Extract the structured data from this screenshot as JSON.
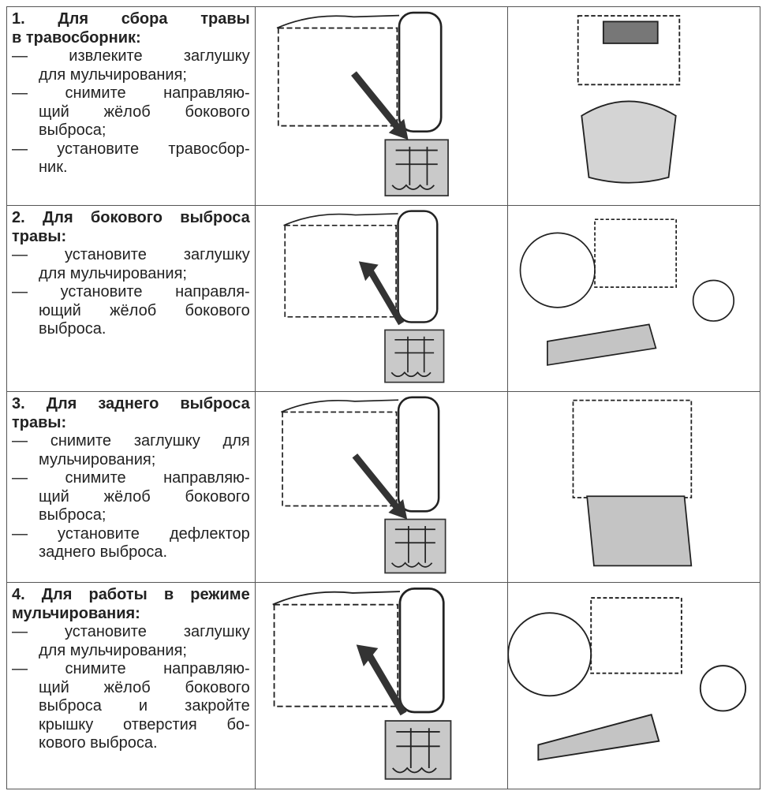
{
  "table": {
    "rows": [
      {
        "heading": [
          "1.  Для  сбора  травы",
          "в травосборник:"
        ],
        "items": [
          [
            "— извлеките заглушку",
            "для мульчирования;"
          ],
          [
            "— снимите направляю-",
            "щий жёлоб бокового",
            "выброса;"
          ],
          [
            "— установите травосбор-",
            "ник."
          ]
        ]
      },
      {
        "heading": [
          "2. Для бокового выброса",
          "травы:"
        ],
        "items": [
          [
            "— установите заглушку",
            "для мульчирования;"
          ],
          [
            "— установите направля-",
            "ющий жёлоб бокового",
            "выброса."
          ]
        ]
      },
      {
        "heading": [
          "3. Для заднего выброса",
          "травы:"
        ],
        "items": [
          [
            "— снимите заглушку для",
            "мульчирования;"
          ],
          [
            "— снимите направляю-",
            "щий жёлоб бокового",
            "выброса;"
          ],
          [
            "— установите дефлектор",
            "заднего выброса."
          ]
        ]
      },
      {
        "heading": [
          "4. Для работы в режиме",
          "мульчирования:"
        ],
        "items": [
          [
            "— установите заглушку",
            "для мульчирования;"
          ],
          [
            "— снимите направляю-",
            "щий жёлоб бокового",
            "выброса и закройте",
            "крышку отверстия бо-",
            "кового выброса."
          ]
        ]
      }
    ]
  }
}
